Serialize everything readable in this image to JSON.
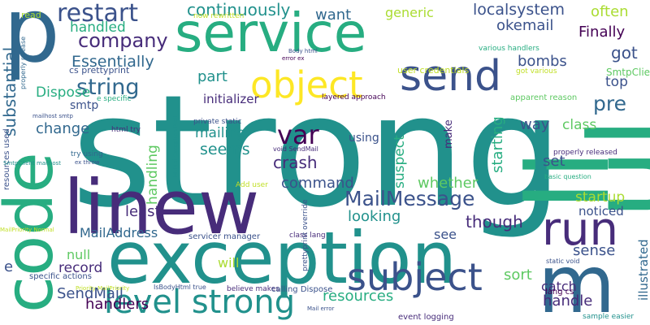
{
  "word_cloud": {
    "palette": {
      "dark_purple": "#440154",
      "indigo": "#472c7a",
      "blue": "#3b528b",
      "slate_blue": "#31688e",
      "teal": "#21918c",
      "green": "#27ad81",
      "lime": "#5ec962",
      "light_lime": "#aadc32",
      "yellow": "#fde725",
      "yellow_green": "#c0df25"
    },
    "words": [
      {
        "text": "strong",
        "color": "#21918c"
      },
      {
        "text": "service",
        "color": "#27ad81"
      },
      {
        "text": "exception",
        "color": "#21918c"
      },
      {
        "text": "p",
        "color": "#31688e"
      },
      {
        "text": "code",
        "color": "#27ad81"
      },
      {
        "text": "linew",
        "color": "#472c7a"
      },
      {
        "text": "m",
        "color": "#31688e"
      },
      {
        "text": "li",
        "color": "#27ad81"
      },
      {
        "text": "ul",
        "color": "#27ad81"
      },
      {
        "text": "send",
        "color": "#3b528b"
      },
      {
        "text": "object",
        "color": "#fde725"
      },
      {
        "text": "run",
        "color": "#472c7a"
      },
      {
        "text": "subject",
        "color": "#3b528b"
      },
      {
        "text": "level strong",
        "color": "#21918c"
      },
      {
        "text": "restart",
        "color": "#3b528b"
      },
      {
        "text": "company",
        "color": "#472c7a"
      },
      {
        "text": "string",
        "color": "#31688e"
      },
      {
        "text": "MailMessage",
        "color": "#3b528b"
      },
      {
        "text": "continuously",
        "color": "#21918c"
      },
      {
        "text": "localsystem",
        "color": "#3b528b"
      },
      {
        "text": "want",
        "color": "#31688e"
      },
      {
        "text": "generic",
        "color": "#aadc32"
      },
      {
        "text": "often",
        "color": "#aadc32"
      },
      {
        "text": "Finally",
        "color": "#440154"
      },
      {
        "text": "okemail",
        "color": "#3b528b"
      },
      {
        "text": "handled",
        "color": "#27ad81"
      },
      {
        "text": "Essentially",
        "color": "#31688e"
      },
      {
        "text": "bombs",
        "color": "#3b528b"
      },
      {
        "text": "got",
        "color": "#3b528b"
      },
      {
        "text": "pre",
        "color": "#31688e"
      },
      {
        "text": "top",
        "color": "#3b528b"
      },
      {
        "text": "substantial",
        "color": "#31688e"
      },
      {
        "text": "Dispose",
        "color": "#27ad81"
      },
      {
        "text": "smtp",
        "color": "#3b528b"
      },
      {
        "text": "part",
        "color": "#21918c"
      },
      {
        "text": "initializer",
        "color": "#472c7a"
      },
      {
        "text": "change",
        "color": "#31688e"
      },
      {
        "text": "var",
        "color": "#440154"
      },
      {
        "text": "way",
        "color": "#3b528b"
      },
      {
        "text": "class",
        "color": "#5ec962"
      },
      {
        "text": "seems",
        "color": "#21918c"
      },
      {
        "text": "mailing",
        "color": "#21918c"
      },
      {
        "text": "crash",
        "color": "#472c7a"
      },
      {
        "text": "command",
        "color": "#3b528b"
      },
      {
        "text": "using",
        "color": "#3b528b"
      },
      {
        "text": "starting",
        "color": "#27ad81"
      },
      {
        "text": "suspect",
        "color": "#27ad81"
      },
      {
        "text": "set",
        "color": "#3b528b"
      },
      {
        "text": "whether",
        "color": "#5ec962"
      },
      {
        "text": "startup",
        "color": "#aadc32"
      },
      {
        "text": "handling",
        "color": "#5ec962"
      },
      {
        "text": "least",
        "color": "#472c7a"
      },
      {
        "text": "looking",
        "color": "#21918c"
      },
      {
        "text": "though",
        "color": "#472c7a"
      },
      {
        "text": "noticed",
        "color": "#3b528b"
      },
      {
        "text": "MailAddress",
        "color": "#31688e"
      },
      {
        "text": "see",
        "color": "#3b528b"
      },
      {
        "text": "sense",
        "color": "#3b528b"
      },
      {
        "text": "null",
        "color": "#5ec962"
      },
      {
        "text": "will",
        "color": "#aadc32"
      },
      {
        "text": "record",
        "color": "#472c7a"
      },
      {
        "text": "e",
        "color": "#3b528b"
      },
      {
        "text": "catch",
        "color": "#472c7a"
      },
      {
        "text": "sort",
        "color": "#5ec962"
      },
      {
        "text": "handle",
        "color": "#472c7a"
      },
      {
        "text": "illustrated",
        "color": "#31688e"
      },
      {
        "text": "handlers",
        "color": "#440154"
      },
      {
        "text": "SendMail",
        "color": "#3b528b"
      },
      {
        "text": "resources",
        "color": "#27ad81"
      },
      {
        "text": "make",
        "color": "#472c7a"
      },
      {
        "text": "read",
        "color": "#aadc32"
      },
      {
        "text": "now rewritten",
        "color": "#c0df25"
      },
      {
        "text": "Body html",
        "color": "#3b528b"
      },
      {
        "text": "error ex",
        "color": "#440154"
      },
      {
        "text": "various handlers",
        "color": "#27ad81"
      },
      {
        "text": "SmtpClient",
        "color": "#5ec962"
      },
      {
        "text": "got various",
        "color": "#c0df25"
      },
      {
        "text": "user credentials",
        "color": "#c0df25"
      },
      {
        "text": "cs prettyprint",
        "color": "#3b528b"
      },
      {
        "text": "properly release",
        "color": "#31688e"
      },
      {
        "text": "e specific",
        "color": "#27ad81"
      },
      {
        "text": "layered approach",
        "color": "#440154"
      },
      {
        "text": "apparent reason",
        "color": "#5ec962"
      },
      {
        "text": "basic question",
        "color": "#27ad81"
      },
      {
        "text": "properly released",
        "color": "#472c7a"
      },
      {
        "text": "private static",
        "color": "#3b528b"
      },
      {
        "text": "html try",
        "color": "#472c7a"
      },
      {
        "text": "void SendMail",
        "color": "#472c7a"
      },
      {
        "text": "try using",
        "color": "#31688e"
      },
      {
        "text": "ex throw",
        "color": "#3b528b"
      },
      {
        "text": "resources used",
        "color": "#3b528b"
      },
      {
        "text": "mailhost smtp",
        "color": "#3b528b"
      },
      {
        "text": "SmtpClient mailhost",
        "color": "#21918c"
      },
      {
        "text": "MyMailException Mail",
        "color": "#21918c"
      },
      {
        "text": "Add user",
        "color": "#c0df25"
      },
      {
        "text": "MailPriority Normal",
        "color": "#c0df25"
      },
      {
        "text": "servicer manager",
        "color": "#3b528b"
      },
      {
        "text": "class lang",
        "color": "#472c7a"
      },
      {
        "text": "prettyprint override",
        "color": "#3b528b"
      },
      {
        "text": "static void",
        "color": "#3b528b"
      },
      {
        "text": "lang cs",
        "color": "#440154"
      },
      {
        "text": "specific actions",
        "color": "#3b528b"
      },
      {
        "text": "Priority MailPriority",
        "color": "#c0df25"
      },
      {
        "text": "IsBodyHtml true",
        "color": "#3b528b"
      },
      {
        "text": "believe makes",
        "color": "#472c7a"
      },
      {
        "text": "calling Dispose",
        "color": "#3b528b"
      },
      {
        "text": "Mail error",
        "color": "#3b528b"
      },
      {
        "text": "event logging",
        "color": "#472c7a"
      },
      {
        "text": "sample easier",
        "color": "#21918c"
      }
    ]
  }
}
